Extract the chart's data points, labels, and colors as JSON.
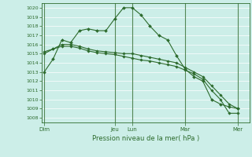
{
  "xlabel": "Pression niveau de la mer( hPa )",
  "ylim": [
    1007.5,
    1020.5
  ],
  "yticks": [
    1008,
    1009,
    1010,
    1011,
    1012,
    1013,
    1014,
    1015,
    1016,
    1017,
    1018,
    1019,
    1020
  ],
  "bg_color": "#cceee8",
  "line_color": "#2d6b2d",
  "grid_color": "#ffffff",
  "day_labels": [
    "Dim",
    "Jeu",
    "Lun",
    "Mar",
    "Mer"
  ],
  "day_positions": [
    0,
    8,
    10,
    16,
    22
  ],
  "xlim": [
    -0.3,
    23.3
  ],
  "series1": [
    1013.0,
    1014.4,
    1016.5,
    1016.2,
    1017.5,
    1017.7,
    1017.5,
    1017.5,
    1018.8,
    1020.0,
    1020.0,
    1019.2,
    1018.0,
    1017.0,
    1016.5,
    1014.8,
    1013.3,
    1012.5,
    1012.0,
    1010.0,
    1009.5,
    1009.2,
    1009.0
  ],
  "series2": [
    1015.0,
    1015.5,
    1016.0,
    1016.0,
    1015.8,
    1015.5,
    1015.3,
    1015.2,
    1015.1,
    1015.0,
    1015.0,
    1014.8,
    1014.6,
    1014.4,
    1014.2,
    1014.0,
    1013.5,
    1013.0,
    1012.5,
    1011.5,
    1010.5,
    1009.5,
    1009.0
  ],
  "series3": [
    1015.2,
    1015.5,
    1015.8,
    1015.8,
    1015.6,
    1015.3,
    1015.1,
    1015.0,
    1014.9,
    1014.7,
    1014.5,
    1014.3,
    1014.2,
    1014.0,
    1013.8,
    1013.6,
    1013.2,
    1012.8,
    1012.2,
    1011.0,
    1010.0,
    1008.5,
    1008.5
  ]
}
